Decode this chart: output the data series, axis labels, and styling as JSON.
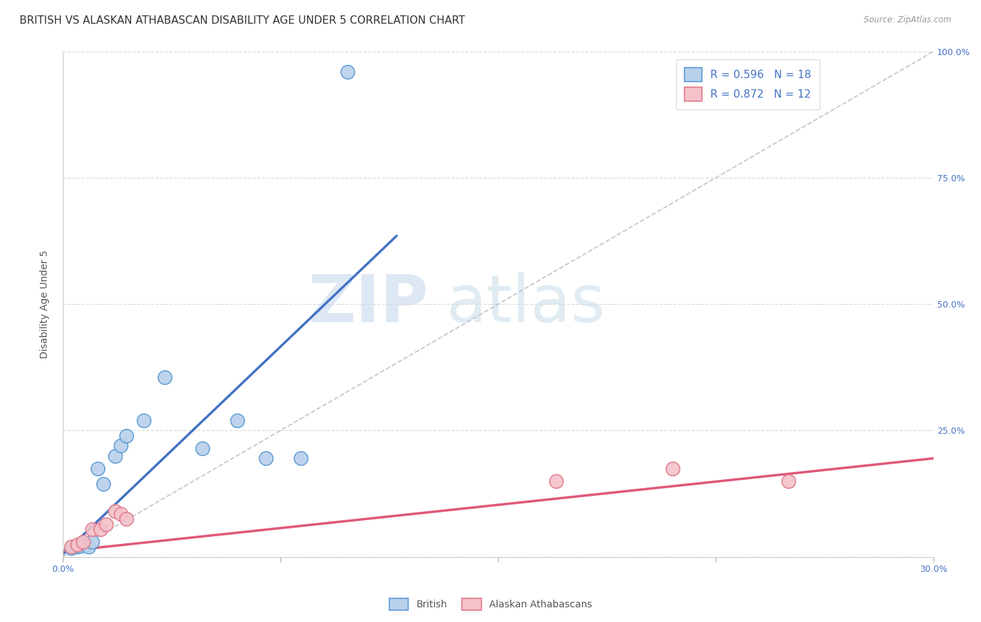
{
  "title": "BRITISH VS ALASKAN ATHABASCAN DISABILITY AGE UNDER 5 CORRELATION CHART",
  "source": "Source: ZipAtlas.com",
  "ylabel": "Disability Age Under 5",
  "right_yticks": [
    0.0,
    0.25,
    0.5,
    0.75,
    1.0
  ],
  "right_yticklabels": [
    "",
    "25.0%",
    "50.0%",
    "75.0%",
    "100.0%"
  ],
  "xlim": [
    0.0,
    0.3
  ],
  "ylim": [
    0.0,
    1.0
  ],
  "british_color": "#b8d0ea",
  "british_edge_color": "#5b9bd5",
  "alaskan_color": "#f4c2cb",
  "alaskan_edge_color": "#e07888",
  "british_R": 0.596,
  "british_N": 18,
  "alaskan_R": 0.872,
  "alaskan_N": 12,
  "legend_R_color": "#4472c4",
  "british_scatter_x": [
    0.003,
    0.005,
    0.006,
    0.008,
    0.009,
    0.01,
    0.012,
    0.014,
    0.018,
    0.02,
    0.022,
    0.028,
    0.035,
    0.048,
    0.06,
    0.07,
    0.082,
    0.098
  ],
  "british_scatter_y": [
    0.018,
    0.02,
    0.022,
    0.025,
    0.02,
    0.03,
    0.175,
    0.145,
    0.2,
    0.22,
    0.24,
    0.27,
    0.355,
    0.215,
    0.27,
    0.195,
    0.195,
    0.96
  ],
  "alaskan_scatter_x": [
    0.003,
    0.005,
    0.007,
    0.01,
    0.013,
    0.015,
    0.018,
    0.02,
    0.022,
    0.17,
    0.21,
    0.25
  ],
  "alaskan_scatter_y": [
    0.02,
    0.025,
    0.03,
    0.055,
    0.055,
    0.065,
    0.09,
    0.085,
    0.075,
    0.15,
    0.175,
    0.15
  ],
  "british_line_x": [
    0.0,
    0.115
  ],
  "british_line_y": [
    0.005,
    0.635
  ],
  "alaskan_line_x": [
    -0.005,
    0.3
  ],
  "alaskan_line_y": [
    0.008,
    0.195
  ],
  "diag_line_x": [
    0.0,
    0.3
  ],
  "diag_line_y": [
    0.0,
    1.0
  ],
  "watermark_zip": "ZIP",
  "watermark_atlas": "atlas",
  "watermark_color_zip": "#d0dff0",
  "watermark_color_atlas": "#c8dce8",
  "british_line_color": "#4472c4",
  "alaskan_line_color": "#e05878",
  "diag_line_color": "#b8b8c0",
  "grid_color": "#d8dce0",
  "background_color": "#ffffff",
  "title_fontsize": 11,
  "axis_label_fontsize": 10,
  "tick_fontsize": 9,
  "legend_fontsize": 11,
  "bottom_legend_labels": [
    "British",
    "Alaskan Athabascans"
  ]
}
